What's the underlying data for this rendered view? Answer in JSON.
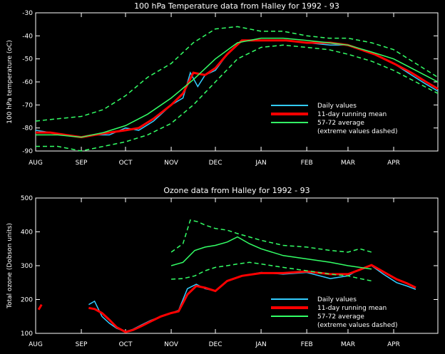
{
  "chart_data": [
    {
      "type": "line",
      "title": "100 hPa Temperature data from Halley for 1992 - 93",
      "ylabel": "100 hPa temperature (oC)",
      "xlabel": "",
      "ylim": [
        -90,
        -30
      ],
      "yticks": [
        -90,
        -80,
        -70,
        -60,
        -50,
        -40,
        -30
      ],
      "month_labels": [
        "AUG",
        "SEP",
        "OCT",
        "NOV",
        "DEC",
        "JAN",
        "FEB",
        "MAR",
        "APR"
      ],
      "month_starts": [
        0,
        31,
        61,
        92,
        122,
        153,
        184,
        212,
        243
      ],
      "xlim": [
        0,
        273
      ],
      "legend": {
        "position": "lower-right",
        "entries": [
          "Daily values",
          "11-day running mean",
          "57-72 average",
          "(extreme values dashed)"
        ]
      },
      "series": [
        {
          "name": "Daily values",
          "color": "#33ccff",
          "x": [
            0,
            10,
            20,
            31,
            40,
            50,
            61,
            70,
            80,
            92,
            100,
            105,
            110,
            115,
            122,
            130,
            140,
            153,
            170,
            184,
            200,
            212,
            230,
            243,
            255,
            265,
            273
          ],
          "y": [
            -81,
            -82,
            -83,
            -84,
            -83,
            -83,
            -80,
            -81,
            -77,
            -70,
            -67,
            -56,
            -62,
            -57,
            -55,
            -48,
            -42,
            -42,
            -42,
            -43,
            -44,
            -44,
            -48,
            -52,
            -57,
            -61,
            -64
          ]
        },
        {
          "name": "11-day running mean",
          "color": "#ff0000",
          "x": [
            0,
            10,
            20,
            31,
            40,
            50,
            61,
            70,
            80,
            92,
            100,
            107,
            115,
            122,
            130,
            140,
            153,
            170,
            184,
            200,
            212,
            230,
            243,
            255,
            265,
            273
          ],
          "y": [
            -82,
            -82,
            -83,
            -84,
            -83,
            -82,
            -81,
            -80,
            -76,
            -70,
            -65,
            -56,
            -57,
            -54,
            -48,
            -42,
            -42,
            -42,
            -43,
            -43,
            -44,
            -48,
            -52,
            -56,
            -60,
            -63
          ]
        },
        {
          "name": "57-72 average",
          "color": "#33ff66",
          "x": [
            0,
            15,
            31,
            46,
            61,
            76,
            92,
            107,
            122,
            137,
            153,
            168,
            184,
            199,
            212,
            228,
            243,
            258,
            273
          ],
          "y": [
            -83,
            -83,
            -84,
            -82,
            -79,
            -74,
            -67,
            -59,
            -50,
            -43,
            -41,
            -41,
            -42,
            -43,
            -44,
            -47,
            -50,
            -55,
            -60
          ]
        },
        {
          "name": "57-72 maximum",
          "color": "#33ff66",
          "dashed": true,
          "x": [
            0,
            15,
            31,
            46,
            61,
            76,
            92,
            107,
            122,
            137,
            153,
            168,
            184,
            199,
            212,
            228,
            243,
            258,
            273
          ],
          "y": [
            -77,
            -76,
            -75,
            -72,
            -66,
            -58,
            -52,
            -43,
            -37,
            -36,
            -38,
            -38,
            -40,
            -41,
            -41,
            -43,
            -46,
            -52,
            -58
          ]
        },
        {
          "name": "57-72 minimum",
          "color": "#33ff66",
          "dashed": true,
          "x": [
            0,
            15,
            31,
            46,
            61,
            76,
            92,
            107,
            122,
            137,
            153,
            168,
            184,
            199,
            212,
            228,
            243,
            258,
            273
          ],
          "y": [
            -88,
            -88,
            -90,
            -88,
            -86,
            -83,
            -78,
            -70,
            -60,
            -50,
            -45,
            -44,
            -45,
            -46,
            -48,
            -51,
            -55,
            -60,
            -65
          ]
        }
      ]
    },
    {
      "type": "line",
      "title": "Ozone data from Halley for 1992 - 93",
      "ylabel": "Total ozone (Dobson units)",
      "xlabel": "",
      "ylim": [
        100,
        500
      ],
      "yticks": [
        100,
        200,
        300,
        400,
        500
      ],
      "month_labels": [
        "AUG",
        "SEP",
        "OCT",
        "NOV",
        "DEC",
        "JAN",
        "FEB",
        "MAR",
        "APR"
      ],
      "month_starts": [
        0,
        31,
        61,
        92,
        122,
        153,
        184,
        212,
        243
      ],
      "xlim": [
        0,
        273
      ],
      "legend": {
        "position": "lower-right",
        "entries": [
          "Daily values",
          "11-day running mean",
          "57-72 average",
          "(extreme values dashed)"
        ]
      },
      "series": [
        {
          "name": "Daily values",
          "color": "#33ccff",
          "x": [
            36,
            40,
            45,
            50,
            55,
            61,
            66,
            72,
            78,
            85,
            92,
            97,
            103,
            109,
            115,
            122,
            130,
            140,
            153,
            168,
            184,
            200,
            212,
            220,
            228,
            236,
            245,
            252,
            258
          ],
          "y": [
            185,
            195,
            150,
            130,
            115,
            105,
            112,
            125,
            138,
            150,
            160,
            168,
            232,
            245,
            232,
            225,
            255,
            270,
            280,
            275,
            280,
            262,
            270,
            290,
            300,
            275,
            250,
            240,
            230
          ]
        },
        {
          "name": "11-day running mean",
          "color": "#ff0000",
          "x": [
            36,
            40,
            45,
            50,
            55,
            61,
            66,
            72,
            78,
            85,
            92,
            97,
            103,
            109,
            115,
            122,
            130,
            140,
            153,
            168,
            184,
            200,
            212,
            220,
            228,
            236,
            245,
            252,
            258
          ],
          "y": [
            175,
            172,
            160,
            140,
            118,
            104,
            110,
            122,
            135,
            150,
            160,
            165,
            215,
            240,
            235,
            225,
            255,
            270,
            278,
            278,
            283,
            275,
            275,
            288,
            302,
            282,
            260,
            248,
            235
          ]
        },
        {
          "name": "57-72 average",
          "color": "#33ff66",
          "x": [
            92,
            100,
            108,
            115,
            122,
            130,
            137,
            145,
            153,
            168,
            184,
            200,
            212,
            220,
            228
          ],
          "y": [
            300,
            310,
            345,
            355,
            360,
            370,
            385,
            365,
            350,
            330,
            320,
            310,
            300,
            295,
            290
          ]
        },
        {
          "name": "57-72 maximum",
          "color": "#33ff66",
          "dashed": true,
          "x": [
            92,
            100,
            105,
            110,
            115,
            122,
            130,
            137,
            145,
            153,
            168,
            184,
            200,
            212,
            220,
            228
          ],
          "y": [
            340,
            365,
            435,
            430,
            420,
            410,
            405,
            395,
            385,
            375,
            360,
            355,
            345,
            340,
            350,
            340
          ]
        },
        {
          "name": "57-72 minimum",
          "color": "#33ff66",
          "dashed": true,
          "x": [
            92,
            100,
            108,
            115,
            122,
            130,
            137,
            145,
            153,
            168,
            184,
            200,
            212,
            220,
            228
          ],
          "y": [
            260,
            262,
            270,
            285,
            295,
            300,
            305,
            310,
            305,
            295,
            285,
            275,
            270,
            262,
            255
          ]
        }
      ],
      "extra_series": [
        {
          "name": "August mean fragment",
          "color": "#ff0000",
          "x": [
            2,
            4
          ],
          "y": [
            170,
            185
          ]
        }
      ]
    }
  ]
}
